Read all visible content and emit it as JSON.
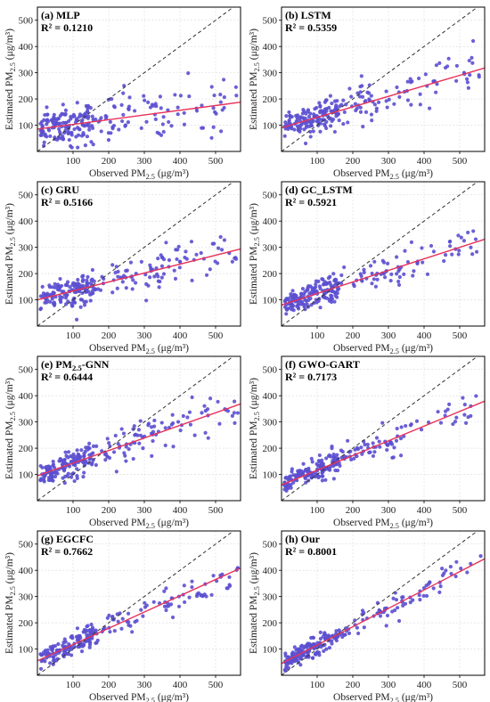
{
  "colors": {
    "points": "#5b4fd0",
    "fit": "#e8325a",
    "identity": "#333333",
    "grid": "#d9d9d9"
  },
  "axis_labels": {
    "x": [
      "Observed PM",
      "2.5",
      " (μg/m³)"
    ],
    "y": [
      "Estimated PM",
      "2.5",
      " (μg/m³)"
    ]
  },
  "chart_data": [
    {
      "type": "scatter",
      "title": "(a) MLP",
      "r2": "R² = 0.1210",
      "xlim": [
        0,
        570
      ],
      "ylim": [
        0,
        550
      ],
      "xticks": [
        100,
        200,
        300,
        400,
        500
      ],
      "yticks": [
        100,
        200,
        300,
        400,
        500
      ],
      "fit_line": {
        "slope": 0.18,
        "intercept": 85
      }
    },
    {
      "type": "scatter",
      "title": "(b) LSTM",
      "r2": "R² = 0.5359",
      "xlim": [
        0,
        570
      ],
      "ylim": [
        0,
        550
      ],
      "xticks": [
        100,
        200,
        300,
        400,
        500
      ],
      "yticks": [
        100,
        200,
        300,
        400,
        500
      ],
      "fit_line": {
        "slope": 0.4,
        "intercept": 90
      }
    },
    {
      "type": "scatter",
      "title": "(c) GRU",
      "r2": "R² = 0.5166",
      "xlim": [
        0,
        570
      ],
      "ylim": [
        0,
        550
      ],
      "xticks": [
        100,
        200,
        300,
        400,
        500
      ],
      "yticks": [
        100,
        200,
        300,
        400,
        500
      ],
      "fit_line": {
        "slope": 0.34,
        "intercept": 100
      }
    },
    {
      "type": "scatter",
      "title": "(d) GC_LSTM",
      "r2": "R² = 0.5921",
      "xlim": [
        0,
        570
      ],
      "ylim": [
        0,
        550
      ],
      "xticks": [
        100,
        200,
        300,
        400,
        500
      ],
      "yticks": [
        100,
        200,
        300,
        400,
        500
      ],
      "fit_line": {
        "slope": 0.44,
        "intercept": 80
      }
    },
    {
      "type": "scatter",
      "title": [
        "(e) PM",
        "2.5",
        "-GNN"
      ],
      "r2": "R² = 0.6444",
      "xlim": [
        0,
        570
      ],
      "ylim": [
        0,
        550
      ],
      "xticks": [
        100,
        200,
        300,
        400,
        500
      ],
      "yticks": [
        100,
        200,
        300,
        400,
        500
      ],
      "fit_line": {
        "slope": 0.48,
        "intercept": 95
      }
    },
    {
      "type": "scatter",
      "title": "(f) GWO-GART",
      "r2": "R² = 0.7173",
      "xlim": [
        0,
        570
      ],
      "ylim": [
        0,
        550
      ],
      "xticks": [
        100,
        200,
        300,
        400,
        500
      ],
      "yticks": [
        100,
        200,
        300,
        400,
        500
      ],
      "fit_line": {
        "slope": 0.56,
        "intercept": 60
      }
    },
    {
      "type": "scatter",
      "title": "(g) EGCFC",
      "r2": "R² = 0.7662",
      "xlim": [
        0,
        570
      ],
      "ylim": [
        0,
        550
      ],
      "xticks": [
        100,
        200,
        300,
        400,
        500
      ],
      "yticks": [
        100,
        200,
        300,
        400,
        500
      ],
      "fit_line": {
        "slope": 0.62,
        "intercept": 55
      }
    },
    {
      "type": "scatter",
      "title": "(h) Our",
      "r2": "R² = 0.8001",
      "xlim": [
        0,
        570
      ],
      "ylim": [
        0,
        550
      ],
      "xticks": [
        100,
        200,
        300,
        400,
        500
      ],
      "yticks": [
        100,
        200,
        300,
        400,
        500
      ],
      "fit_line": {
        "slope": 0.7,
        "intercept": 45
      }
    }
  ]
}
